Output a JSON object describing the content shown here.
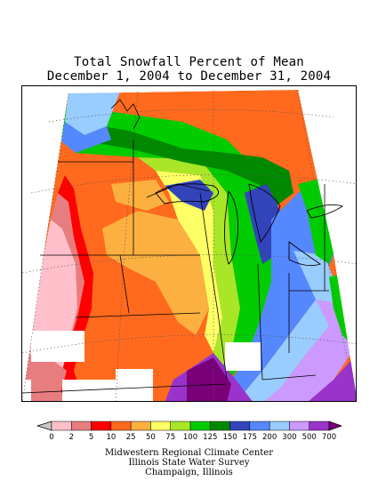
{
  "title": {
    "line1": "Total Snowfall Percent of Mean",
    "line2": "December 1, 2004 to December 31, 2004"
  },
  "legend": {
    "ticks": [
      "0",
      "2",
      "5",
      "10",
      "25",
      "50",
      "75",
      "100",
      "125",
      "150",
      "175",
      "200",
      "300",
      "500",
      "700"
    ],
    "colors": [
      "#c8c8c8",
      "#ffc0cb",
      "#e87d80",
      "#ff0000",
      "#ff6a1e",
      "#fcb040",
      "#ffff66",
      "#a8e627",
      "#00cc00",
      "#008800",
      "#3344bb",
      "#5588ff",
      "#99ccff",
      "#cc99ff",
      "#9933cc",
      "#7a007a"
    ]
  },
  "credits": {
    "line1": "Midwestern Regional Climate Center",
    "line2": "Illinois State Water Survey",
    "line3": "Champaign, Illinois"
  }
}
